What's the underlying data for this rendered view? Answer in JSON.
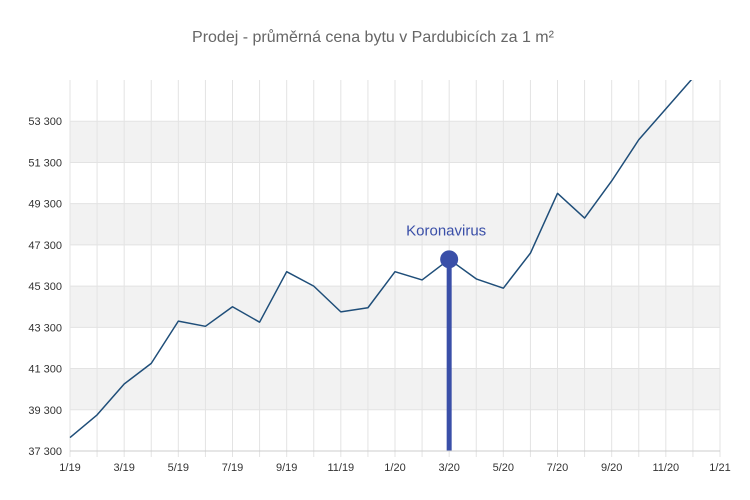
{
  "chart_data": {
    "type": "line",
    "title": "Prodej - průměrná cena bytu v Pardubicích za 1 m²",
    "xlabel": "",
    "ylabel": "",
    "x_tick_labels": [
      "1/19",
      "3/19",
      "5/19",
      "7/19",
      "9/19",
      "11/19",
      "1/20",
      "3/20",
      "5/20",
      "7/20",
      "9/20",
      "11/20",
      "1/21"
    ],
    "y_tick_labels": [
      "37 300",
      "39 300",
      "41 300",
      "43 300",
      "45 300",
      "47 300",
      "49 300",
      "51 300",
      "53 300"
    ],
    "y_tick_values": [
      37300,
      39300,
      41300,
      43300,
      45300,
      47300,
      49300,
      51300,
      53300
    ],
    "ylim": [
      37300,
      55300
    ],
    "grid": true,
    "x": [
      "1/19",
      "2/19",
      "3/19",
      "4/19",
      "5/19",
      "6/19",
      "7/19",
      "8/19",
      "9/19",
      "10/19",
      "11/19",
      "12/19",
      "1/20",
      "2/20",
      "3/20",
      "4/20",
      "5/20",
      "6/20",
      "7/20",
      "8/20",
      "9/20",
      "10/20",
      "11/20",
      "12/20",
      "1/21"
    ],
    "series": [
      {
        "color": "#1f4e79",
        "values": [
          37950,
          39050,
          40550,
          41550,
          43600,
          43350,
          44300,
          43550,
          46000,
          45300,
          44050,
          44250,
          46000,
          45600,
          46600,
          45650,
          45200,
          46900,
          49800,
          48600,
          50400,
          52400,
          53900,
          55400,
          57500
        ]
      }
    ],
    "annotation": {
      "label": "Koronavirus",
      "x": "3/20",
      "y": 46600,
      "color": "#3a4fa8"
    }
  }
}
